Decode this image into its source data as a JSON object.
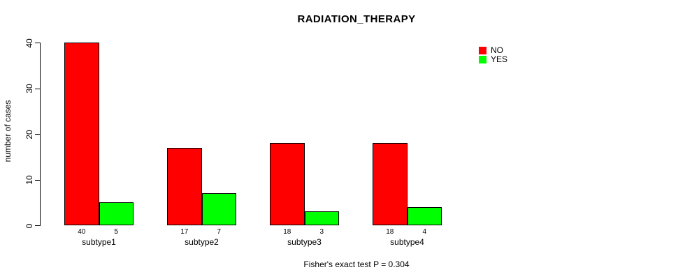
{
  "chart_data": {
    "type": "bar",
    "title": "RADIATION_THERAPY",
    "ylabel": "number of cases",
    "xlabel": "",
    "categories": [
      "subtype1",
      "subtype2",
      "subtype3",
      "subtype4"
    ],
    "series": [
      {
        "name": "NO",
        "color": "#ff0000",
        "values": [
          40,
          17,
          18,
          18
        ]
      },
      {
        "name": "YES",
        "color": "#00ff00",
        "values": [
          5,
          7,
          3,
          4
        ]
      }
    ],
    "ylim": [
      0,
      40
    ],
    "yticks": [
      0,
      10,
      20,
      30,
      40
    ],
    "grid": false,
    "bar_value_labels": true,
    "legend_position": "top-right",
    "annotation": "Fisher's exact test P = 0.304"
  },
  "colors": {
    "no": "#ff0000",
    "yes": "#00ff00",
    "axis": "#000000",
    "background": "#ffffff"
  }
}
